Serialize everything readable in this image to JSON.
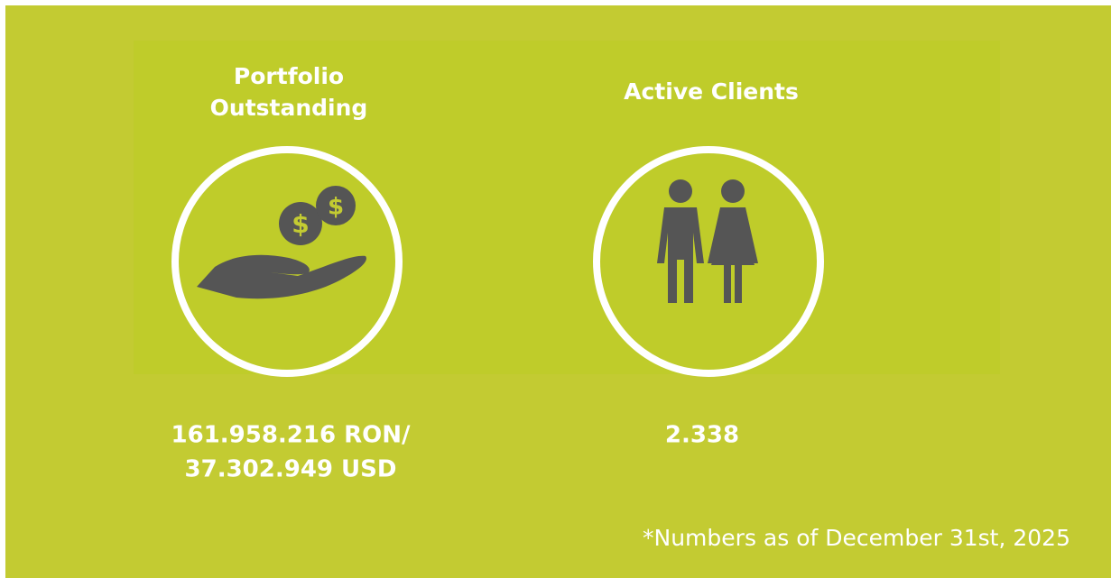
{
  "stats": [
    {
      "title_lines": [
        "Portfolio",
        "Outstanding"
      ],
      "value_lines": [
        "161.958.216 RON/",
        "37.302.949 USD"
      ]
    },
    {
      "title_lines": [
        "Active Clients"
      ],
      "value_lines": [
        "2.338"
      ]
    }
  ],
  "footnote": "*Numbers as of December 31st, 2025"
}
